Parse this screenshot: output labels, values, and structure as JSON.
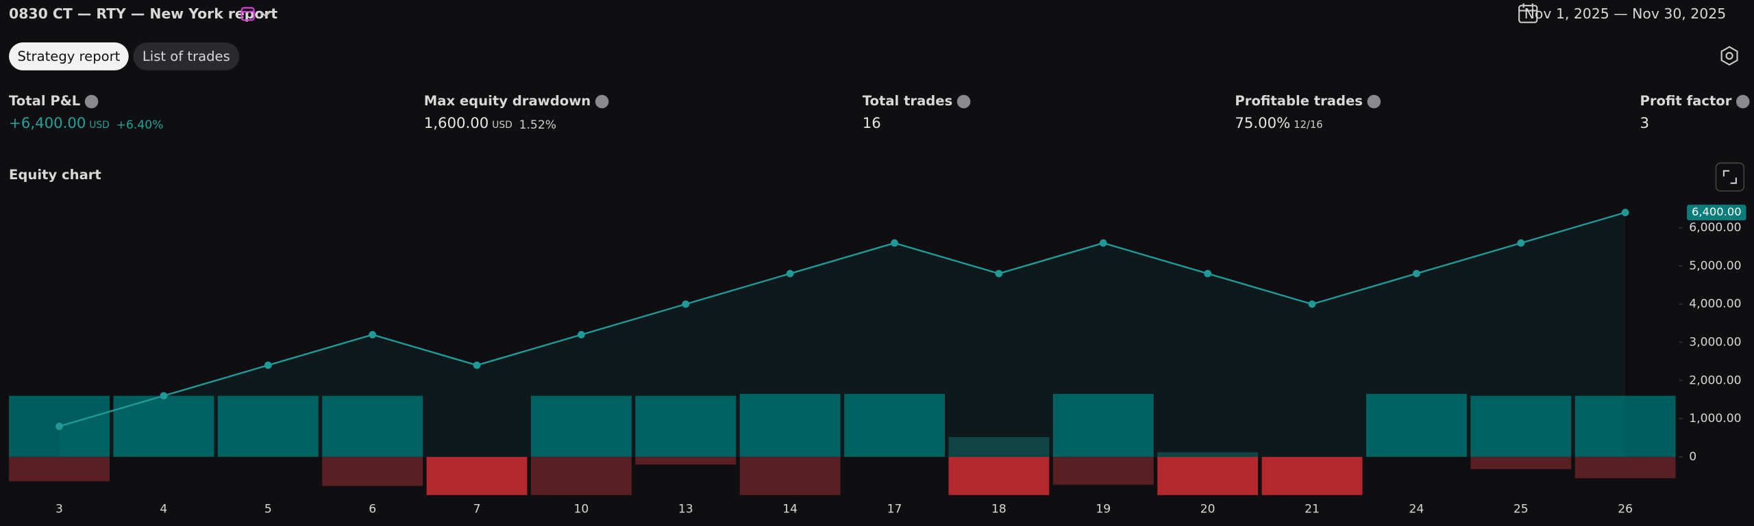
{
  "header": {
    "title": "0830 CT — RTY — New York report",
    "date_range": "Nov 1, 2025 — Nov 30, 2025"
  },
  "tabs": [
    "Strategy report",
    "List of trades"
  ],
  "metrics": [
    {
      "label": "Total P&L",
      "value": "+6,400.00",
      "unit": "USD",
      "extra": "+6.40%"
    },
    {
      "label": "Max equity drawdown",
      "value": "1,600.00",
      "unit": "USD",
      "extra": "1.52%"
    },
    {
      "label": "Total trades",
      "value": "16"
    },
    {
      "label": "Profitable trades",
      "value": "75.00%",
      "extra": "12/16"
    },
    {
      "label": "Profit factor",
      "value": "3"
    }
  ],
  "chart_data": {
    "type": "line",
    "title": "Equity chart",
    "categories": [
      "3",
      "4",
      "5",
      "6",
      "7",
      "10",
      "13",
      "14",
      "17",
      "18",
      "19",
      "20",
      "21",
      "24",
      "25",
      "26"
    ],
    "series": [
      {
        "color": "#1f9a98",
        "values": [
          800,
          1600,
          2400,
          3200,
          2400,
          3200,
          4000,
          4800,
          5600,
          4800,
          5600,
          4800,
          4000,
          4800,
          5600,
          6400
        ]
      }
    ],
    "last_label": {
      "value": 6400,
      "label": "6,400.00"
    },
    "run_up": {
      "values": [
        1600,
        1600,
        1600,
        1600,
        0,
        1600,
        1600,
        1650,
        1650,
        520,
        1650,
        120,
        0,
        1650,
        1600,
        1600
      ],
      "colors": [
        "#005d5d",
        "#005d5d",
        "#005d5d",
        "#005d5d",
        "#0f3f40",
        "#005d5d",
        "#005d5d",
        "#005d5d",
        "#005d5d",
        "#0f3f40",
        "#005d5d",
        "#0f3f40",
        "#0f3f40",
        "#005d5d",
        "#005d5d",
        "#005d5d"
      ]
    },
    "drawdown": {
      "values": [
        -640,
        0,
        0,
        -760,
        -1000,
        -1000,
        -200,
        -1000,
        0,
        -1000,
        -730,
        -1000,
        -1000,
        0,
        -320,
        -560
      ],
      "colors": [
        "#5a1f22",
        "#5a1f22",
        "#5a1f22",
        "#5a1f22",
        "#b2282e",
        "#5a1f22",
        "#5a1f22",
        "#5a1f22",
        "#5a1f22",
        "#b2282e",
        "#5a1f22",
        "#b2282e",
        "#b2282e",
        "#5a1f22",
        "#5a1f22",
        "#5a1f22"
      ]
    },
    "ylim": [
      -1050,
      6700
    ],
    "yticks": [
      0,
      {
        "value": 1000,
        "label": "1,000.00"
      },
      {
        "value": 2000,
        "label": "2,000.00"
      },
      {
        "value": 3000,
        "label": "3,000.00"
      },
      {
        "value": 4000,
        "label": "4,000.00"
      },
      {
        "value": 5000,
        "label": "5,000.00"
      },
      {
        "value": 6000,
        "label": "6,000.00"
      }
    ]
  }
}
